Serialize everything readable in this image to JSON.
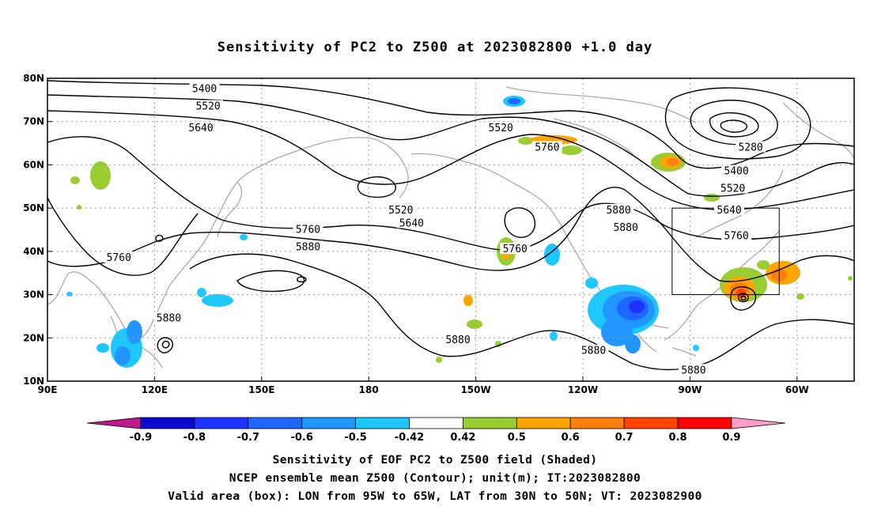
{
  "title": "Sensitivity of PC2 to Z500 at 2023082800 +1.0 day",
  "captions": [
    "Sensitivity of EOF PC2 to Z500 field (Shaded)",
    "NCEP ensemble mean Z500 (Contour); unit(m); IT:2023082800",
    "Valid area (box): LON from 95W to 65W, LAT from 30N to 50N; VT: 2023082900"
  ],
  "map": {
    "projection": "cylindrical",
    "lon_range": [
      90,
      316
    ],
    "lat_range": [
      10,
      80
    ],
    "lon_ticks": [
      {
        "lon": 90,
        "label": "90E"
      },
      {
        "lon": 120,
        "label": "120E"
      },
      {
        "lon": 150,
        "label": "150E"
      },
      {
        "lon": 180,
        "label": "180"
      },
      {
        "lon": 210,
        "label": "150W"
      },
      {
        "lon": 240,
        "label": "120W"
      },
      {
        "lon": 270,
        "label": "90W"
      },
      {
        "lon": 300,
        "label": "60W"
      }
    ],
    "lat_ticks": [
      {
        "lat": 10,
        "label": "10N"
      },
      {
        "lat": 20,
        "label": "20N"
      },
      {
        "lat": 30,
        "label": "30N"
      },
      {
        "lat": 40,
        "label": "40N"
      },
      {
        "lat": 50,
        "label": "50N"
      },
      {
        "lat": 60,
        "label": "60N"
      },
      {
        "lat": 70,
        "label": "70N"
      },
      {
        "lat": 80,
        "label": "80N"
      }
    ],
    "grid": true,
    "valid_box": {
      "lon": [
        265,
        295
      ],
      "lat": [
        30,
        50
      ]
    },
    "contour_labels": [
      {
        "text": "5400",
        "lon": 134,
        "lat": 77.5
      },
      {
        "text": "5520",
        "lon": 135,
        "lat": 73.5
      },
      {
        "text": "5640",
        "lon": 133,
        "lat": 68.5
      },
      {
        "text": "5520",
        "lon": 217,
        "lat": 68.5
      },
      {
        "text": "5760",
        "lon": 230,
        "lat": 64
      },
      {
        "text": "5280",
        "lon": 287,
        "lat": 64
      },
      {
        "text": "5400",
        "lon": 283,
        "lat": 58.5
      },
      {
        "text": "5520",
        "lon": 282,
        "lat": 54.5
      },
      {
        "text": "5640",
        "lon": 281,
        "lat": 49.5
      },
      {
        "text": "5760",
        "lon": 283,
        "lat": 43.5
      },
      {
        "text": "5520",
        "lon": 189,
        "lat": 49.5
      },
      {
        "text": "5640",
        "lon": 192,
        "lat": 46.5
      },
      {
        "text": "5760",
        "lon": 163,
        "lat": 45
      },
      {
        "text": "5880",
        "lon": 163,
        "lat": 41
      },
      {
        "text": "5760",
        "lon": 221,
        "lat": 40.5
      },
      {
        "text": "5880",
        "lon": 250,
        "lat": 49.5
      },
      {
        "text": "5880",
        "lon": 252,
        "lat": 45.5
      },
      {
        "text": "5760",
        "lon": 110,
        "lat": 38.5
      },
      {
        "text": "5880",
        "lon": 124,
        "lat": 24.5
      },
      {
        "text": "5880",
        "lon": 205,
        "lat": 19.5
      },
      {
        "text": "5880",
        "lon": 243,
        "lat": 17
      },
      {
        "text": "5880",
        "lon": 271,
        "lat": 12.5
      }
    ]
  },
  "colorbar": {
    "tick_labels": [
      "-0.9",
      "-0.8",
      "-0.7",
      "-0.6",
      "-0.5",
      "-0.42",
      "0.42",
      "0.5",
      "0.6",
      "0.7",
      "0.8",
      "0.9"
    ],
    "colors": {
      "under": "#c0198c",
      "bins": [
        "#0a0ad0",
        "#1e32ff",
        "#1f66ff",
        "#2196ff",
        "#1ec8ff",
        "#ffffff",
        "#9acd32",
        "#ffa500",
        "#ff7f0e",
        "#ff4500",
        "#ff0000"
      ],
      "over": "#ff9ec8"
    }
  }
}
